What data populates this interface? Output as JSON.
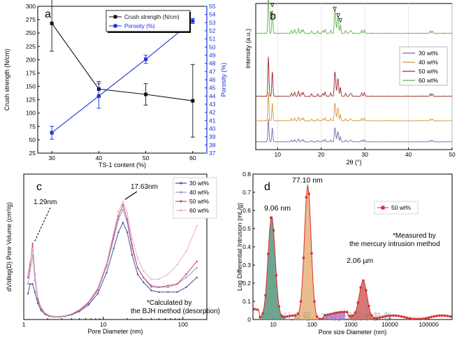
{
  "chart_data": [
    {
      "panel": "a",
      "type": "line",
      "categories": [
        30,
        40,
        50,
        60
      ],
      "xlabel": "TS-1 content (%)",
      "series": [
        {
          "name": "Crush strength (N/cm)",
          "axis": "left",
          "color": "#111111",
          "values": [
            268,
            145,
            135,
            123
          ],
          "errors": [
            52,
            14,
            20,
            68
          ]
        },
        {
          "name": "Porosity (%)",
          "axis": "right",
          "color": "#1a2ee0",
          "values": [
            39.5,
            44,
            48.5,
            53.2
          ],
          "errors": [
            0.8,
            1.5,
            0.5,
            0.3
          ]
        }
      ],
      "left_axis": {
        "label": "Crush strength (N/cm)",
        "ylim": [
          25,
          300
        ],
        "ticks": [
          25,
          50,
          75,
          100,
          125,
          150,
          175,
          200,
          225,
          250,
          275,
          300
        ]
      },
      "right_axis": {
        "label": "Porosity (%)",
        "ylim": [
          37,
          55
        ],
        "ticks": [
          37,
          38,
          39,
          40,
          41,
          42,
          43,
          44,
          45,
          46,
          47,
          48,
          49,
          50,
          51,
          52,
          53,
          54,
          55
        ]
      },
      "legend": "top-right"
    },
    {
      "panel": "b",
      "type": "line",
      "xlabel": "2θ (°)",
      "ylabel": "Intensity (a.u.)",
      "xlim": [
        5,
        50
      ],
      "xticks": [
        10,
        20,
        30,
        40,
        50
      ],
      "peaks": [
        7.9,
        8.8,
        13.2,
        13.9,
        14.8,
        15.5,
        15.9,
        17.8,
        19.2,
        20.4,
        20.9,
        22.2,
        23.1,
        23.3,
        23.7,
        23.9,
        24.4,
        25.6,
        26.6,
        26.9,
        29.3,
        29.9,
        45.0,
        45.5
      ],
      "peak_heights": [
        1.0,
        0.62,
        0.08,
        0.1,
        0.12,
        0.08,
        0.1,
        0.06,
        0.06,
        0.07,
        0.1,
        0.08,
        0.52,
        0.3,
        0.25,
        0.35,
        0.22,
        0.08,
        0.06,
        0.07,
        0.08,
        0.09,
        0.07,
        0.06
      ],
      "series": [
        {
          "name": "30 wt%",
          "color": "#7a68a8",
          "scale": 0.6
        },
        {
          "name": "40 wt%",
          "color": "#d9953a",
          "scale": 0.75
        },
        {
          "name": "50 wt%",
          "color": "#9c2a2a",
          "scale": 1.05
        },
        {
          "name": "60 wt%",
          "color": "#5fae4f",
          "scale": 1.0
        }
      ],
      "markers": [
        "∇",
        "∇",
        "∇",
        "∇",
        "∇"
      ],
      "legend": "right"
    },
    {
      "panel": "c",
      "type": "line",
      "xlabel": "Pore Diameter (nm)",
      "ylabel": "dV/dlog(D) Pore Volume (cm³/g)",
      "xscale": "log",
      "xlim": [
        1,
        200
      ],
      "xticks": [
        1,
        10,
        100
      ],
      "ylim": [
        0,
        0.45
      ],
      "x": [
        1.13,
        1.2,
        1.29,
        1.38,
        1.5,
        1.65,
        1.85,
        2.1,
        2.4,
        2.8,
        3.3,
        4,
        5,
        6.5,
        8.5,
        11,
        13.5,
        15.5,
        17.63,
        20,
        23,
        27,
        32,
        40,
        50,
        65,
        85,
        110,
        150
      ],
      "series": [
        {
          "name": "30 wt%",
          "color": "#4a4e9c",
          "values": [
            0.08,
            0.11,
            0.11,
            0.085,
            0.05,
            0.028,
            0.016,
            0.01,
            0.008,
            0.008,
            0.01,
            0.015,
            0.025,
            0.045,
            0.08,
            0.145,
            0.22,
            0.27,
            0.3,
            0.27,
            0.2,
            0.14,
            0.115,
            0.09,
            0.085,
            0.085,
            0.085,
            0.1,
            0.13
          ]
        },
        {
          "name": "40 wt%",
          "color": "#9a95cc",
          "values": [
            0.11,
            0.15,
            0.2,
            0.12,
            0.06,
            0.033,
            0.018,
            0.011,
            0.009,
            0.009,
            0.011,
            0.017,
            0.028,
            0.05,
            0.09,
            0.165,
            0.25,
            0.31,
            0.34,
            0.3,
            0.22,
            0.16,
            0.13,
            0.1,
            0.1,
            0.1,
            0.11,
            0.13,
            0.16
          ]
        },
        {
          "name": "50 wt%",
          "color": "#c14a68",
          "values": [
            0.13,
            0.17,
            0.235,
            0.14,
            0.065,
            0.035,
            0.019,
            0.012,
            0.009,
            0.009,
            0.011,
            0.017,
            0.029,
            0.052,
            0.093,
            0.17,
            0.26,
            0.32,
            0.355,
            0.31,
            0.23,
            0.16,
            0.13,
            0.105,
            0.1,
            0.105,
            0.11,
            0.14,
            0.18
          ]
        },
        {
          "name": "60 wt%",
          "color": "#eab2c2",
          "values": [
            0.14,
            0.18,
            0.22,
            0.13,
            0.07,
            0.038,
            0.021,
            0.013,
            0.01,
            0.01,
            0.012,
            0.018,
            0.031,
            0.055,
            0.097,
            0.175,
            0.27,
            0.335,
            0.365,
            0.33,
            0.25,
            0.19,
            0.15,
            0.125,
            0.125,
            0.14,
            0.17,
            0.21,
            0.29
          ]
        }
      ],
      "annotations": [
        {
          "text": "1.29nm",
          "x": 1.29,
          "y": 0.235
        },
        {
          "text": "17.63nm",
          "x": 17.63,
          "y": 0.365
        }
      ],
      "note": [
        "*Calculated by",
        "the BJH method (desorption)"
      ],
      "legend": "top-right"
    },
    {
      "panel": "d",
      "type": "area",
      "xlabel": "Pore size Diameter (nm)",
      "ylabel": "Log Differential Intrusion (mL/g)",
      "xscale": "log",
      "xlim": [
        3,
        400000
      ],
      "xticks": [
        10,
        100,
        1000,
        10000,
        100000
      ],
      "xticklabels": [
        "10",
        "100",
        "1000",
        "10000",
        "100000"
      ],
      "ylim": [
        0,
        0.8
      ],
      "yticks": [
        0,
        0.1,
        0.2,
        0.3,
        0.4,
        0.5,
        0.6,
        0.7,
        0.8
      ],
      "series": [
        {
          "name": "50 wt%",
          "color": "#d82c2c"
        }
      ],
      "peaks": [
        {
          "label": "9.06 nm",
          "x": 9.06,
          "y": 0.59,
          "fill": "#5e9b84",
          "range": [
            4.5,
            20
          ]
        },
        {
          "label": "77.10 nm",
          "x": 77.1,
          "y": 0.75,
          "fill": "#e8b683",
          "range": [
            35,
            150
          ]
        },
        {
          "label": "2.06 µm",
          "x": 2060,
          "y": 0.23,
          "fill": "#d26a66",
          "range": [
            900,
            4500
          ]
        }
      ],
      "note": [
        "*Measured by",
        "the mercury intrusion method"
      ],
      "legend": "top-right"
    }
  ],
  "labels": {
    "panel_a": "a",
    "panel_b": "b",
    "panel_c": "c",
    "panel_d": "d"
  },
  "watermark": "公众号 · 3D打印技术参考"
}
